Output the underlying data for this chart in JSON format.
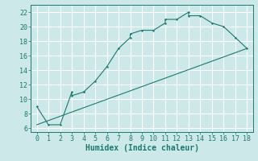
{
  "xlabel": "Humidex (Indice chaleur)",
  "bg_color": "#cce8e8",
  "grid_color": "#ffffff",
  "line_color": "#1a7a6e",
  "xlim": [
    -0.5,
    18.5
  ],
  "ylim": [
    5.5,
    23.0
  ],
  "xticks": [
    0,
    1,
    2,
    3,
    4,
    5,
    6,
    7,
    8,
    9,
    10,
    11,
    12,
    13,
    14,
    15,
    16,
    17,
    18
  ],
  "yticks": [
    6,
    8,
    10,
    12,
    14,
    16,
    18,
    20,
    22
  ],
  "curve1_x": [
    0,
    1,
    2,
    3,
    3,
    4,
    4,
    5,
    6,
    7,
    8,
    8,
    9,
    10,
    11,
    11,
    12,
    13,
    13,
    14,
    15,
    16,
    17,
    18
  ],
  "curve1_y": [
    9,
    6.5,
    6.5,
    11,
    10.5,
    11,
    11,
    12.5,
    14.5,
    17,
    18.5,
    19,
    19.5,
    19.5,
    20.5,
    21,
    21,
    22,
    21.5,
    21.5,
    20.5,
    20,
    18.5,
    17
  ],
  "line2_x": [
    0,
    18
  ],
  "line2_y": [
    6.5,
    17
  ],
  "tick_fontsize": 6,
  "xlabel_fontsize": 7
}
